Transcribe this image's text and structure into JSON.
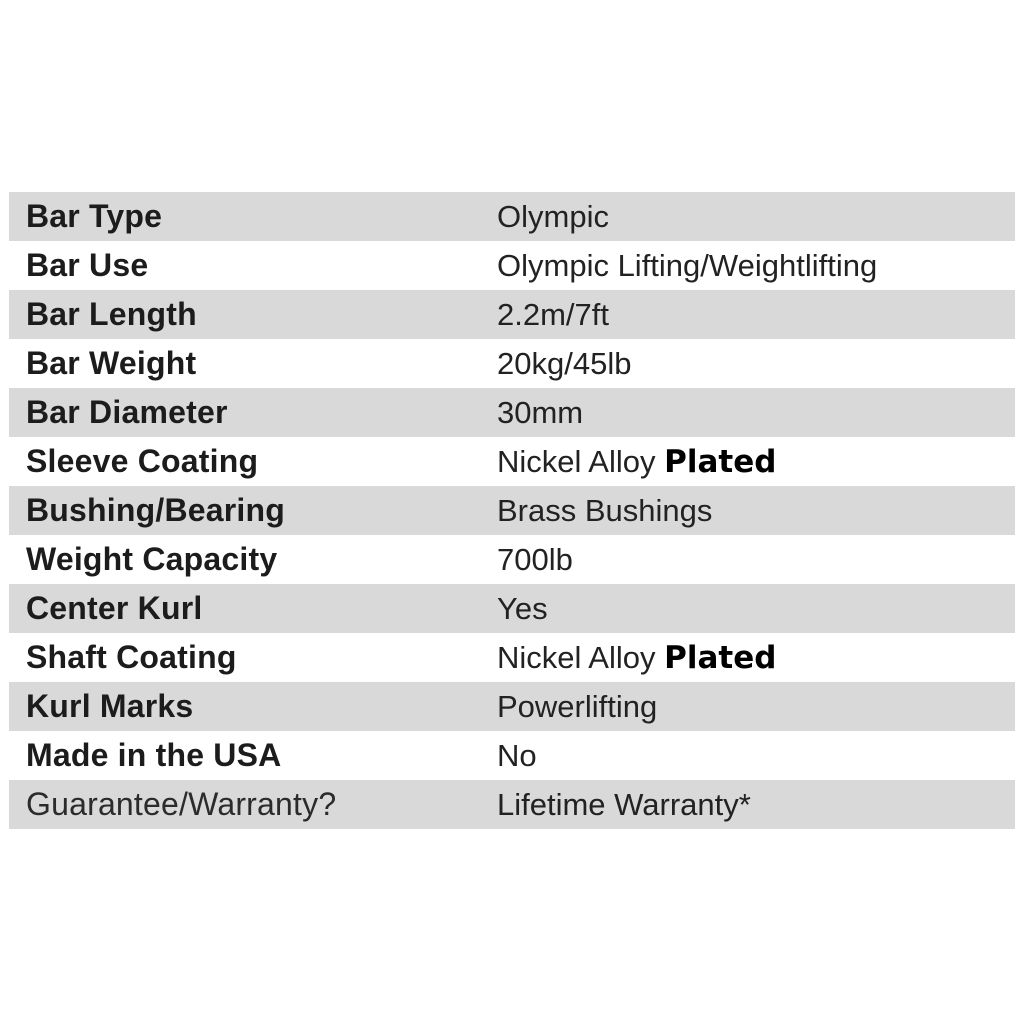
{
  "table": {
    "colors": {
      "row_shaded": "#d9d9d9",
      "row_plain": "#ffffff",
      "label_text": "#1c1c1c",
      "value_text": "#222222",
      "overlay_text": "#000000"
    },
    "rows": [
      {
        "label": "Bar Type",
        "value": "Olympic",
        "shaded": true
      },
      {
        "label": "Bar Use",
        "value": "Olympic Lifting/Weightlifting",
        "shaded": false
      },
      {
        "label": "Bar Length",
        "value": "2.2m/7ft",
        "shaded": true
      },
      {
        "label": "Bar Weight",
        "value": "20kg/45lb",
        "shaded": false
      },
      {
        "label": "Bar Diameter",
        "value": "30mm",
        "shaded": true
      },
      {
        "label": "Sleeve Coating",
        "value": "Nickel Alloy ",
        "value_overlay": "Plated",
        "shaded": false
      },
      {
        "label": "Bushing/Bearing",
        "value": "Brass Bushings",
        "shaded": true
      },
      {
        "label": "Weight Capacity",
        "value": "700lb",
        "shaded": false
      },
      {
        "label": "Center Kurl",
        "value": "Yes",
        "shaded": true
      },
      {
        "label": "Shaft Coating",
        "value": "Nickel Alloy ",
        "value_overlay": "Plated",
        "shaded": false
      },
      {
        "label": "Kurl Marks",
        "value": "Powerlifting",
        "shaded": true
      },
      {
        "label": "Made in the USA",
        "value": "No",
        "shaded": false
      },
      {
        "label": "Guarantee/Warranty?",
        "value": "Lifetime Warranty*",
        "shaded": true
      }
    ]
  }
}
